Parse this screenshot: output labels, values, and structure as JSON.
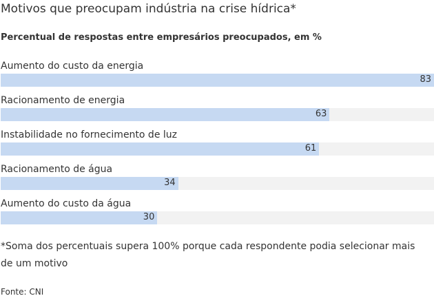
{
  "header": {
    "title": "Motivos que preocupam indústria na crise hídrica*",
    "subtitle": "Percentual de respostas entre empresários preocupados, em %"
  },
  "chart_data": {
    "type": "bar",
    "orientation": "horizontal",
    "title": "Motivos que preocupam indústria na crise hídrica*",
    "subtitle": "Percentual de respostas entre empresários preocupados, em %",
    "categories": [
      "Aumento do custo da energia",
      "Racionamento de energia",
      "Instabilidade no fornecimento de luz",
      "Racionamento de água",
      "Aumento do custo da água"
    ],
    "values": [
      83,
      63,
      61,
      34,
      30
    ],
    "xlim": [
      0,
      83
    ],
    "grid": false,
    "legend": "none",
    "colors": {
      "bar": "#c6d9f2",
      "track": "#f2f2f2"
    }
  },
  "footer": {
    "note": "*Soma dos percentuais supera 100% porque cada respondente podia selecionar mais de um motivo",
    "source": "Fonte: CNI"
  }
}
